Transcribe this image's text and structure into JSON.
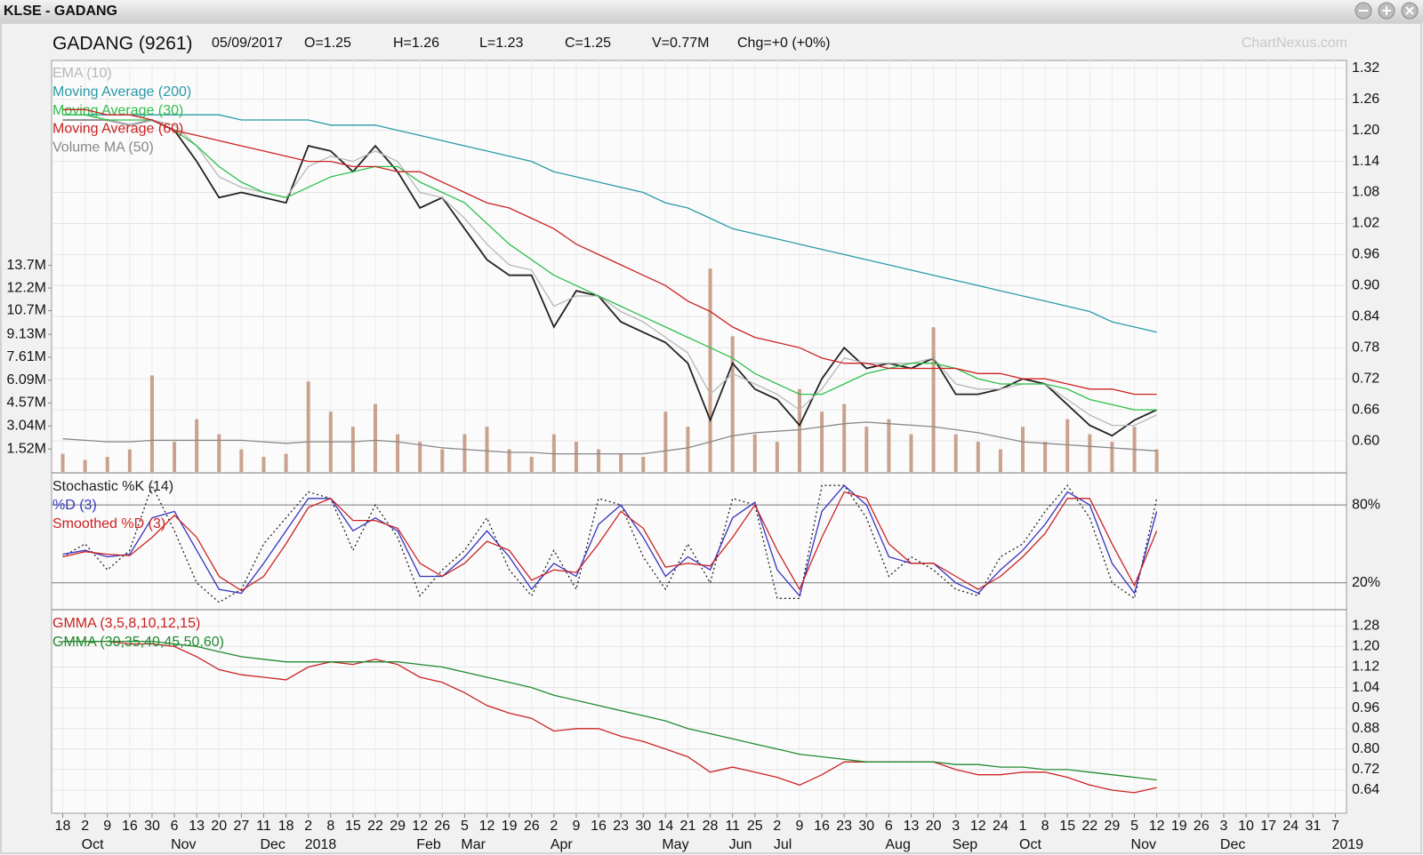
{
  "window_title": "KLSE - GADANG",
  "watermark": "ChartNexus.com",
  "chart_data": [
    {
      "type": "line",
      "title": "GADANG (9261)",
      "date": "05/09/2017",
      "stats": [
        "O=1.25",
        "H=1.26",
        "L=1.23",
        "C=1.25",
        "V=0.77M",
        "Chg=+0 (+0%)"
      ],
      "color": "#222222",
      "values": [
        1.22,
        1.22,
        1.22,
        1.21,
        1.22,
        1.2,
        1.14,
        1.07,
        1.08,
        1.07,
        1.06,
        1.17,
        1.16,
        1.12,
        1.17,
        1.12,
        1.05,
        1.07,
        1.01,
        0.95,
        0.92,
        0.92,
        0.82,
        0.89,
        0.88,
        0.83,
        0.81,
        0.79,
        0.75,
        0.64,
        0.75,
        0.7,
        0.68,
        0.63,
        0.72,
        0.78,
        0.74,
        0.75,
        0.74,
        0.76,
        0.69,
        0.69,
        0.7,
        0.72,
        0.71,
        0.67,
        0.63,
        0.61,
        0.64,
        0.66,
        null,
        null,
        null,
        null,
        null,
        null,
        null,
        null
      ],
      "volume_color": "#c9a28e",
      "volume_values": [
        1200000,
        800000,
        1000000,
        1500000,
        6400000,
        2000000,
        3500000,
        2500000,
        1500000,
        1000000,
        1200000,
        6000000,
        4000000,
        3000000,
        4500000,
        2500000,
        2000000,
        1500000,
        2500000,
        3000000,
        1500000,
        1000000,
        2500000,
        2000000,
        1500000,
        1200000,
        1000000,
        4000000,
        3000000,
        13500000,
        9000000,
        2500000,
        2000000,
        5500000,
        4000000,
        4500000,
        3000000,
        3500000,
        2500000,
        9600000,
        2500000,
        2000000,
        1500000,
        3000000,
        2000000,
        3500000,
        2500000,
        2000000,
        3000000,
        1500000,
        null,
        null,
        null,
        null,
        null,
        null,
        null,
        null
      ],
      "series": [
        {
          "name": "EMA (10)",
          "color": "#b8b8b8",
          "values": [
            1.22,
            1.22,
            1.22,
            1.21,
            1.22,
            1.21,
            1.17,
            1.11,
            1.09,
            1.08,
            1.07,
            1.13,
            1.15,
            1.14,
            1.16,
            1.14,
            1.08,
            1.07,
            1.03,
            0.98,
            0.94,
            0.93,
            0.86,
            0.88,
            0.88,
            0.85,
            0.83,
            0.8,
            0.77,
            0.69,
            0.73,
            0.71,
            0.69,
            0.66,
            0.7,
            0.76,
            0.75,
            0.75,
            0.75,
            0.76,
            0.71,
            0.7,
            0.7,
            0.71,
            0.71,
            0.68,
            0.65,
            0.63,
            0.63,
            0.65,
            null,
            null,
            null,
            null,
            null,
            null,
            null,
            null
          ]
        },
        {
          "name": "Moving Average (200)",
          "color": "#2a9aa6",
          "values": [
            1.23,
            1.23,
            1.23,
            1.23,
            1.23,
            1.23,
            1.23,
            1.23,
            1.22,
            1.22,
            1.22,
            1.22,
            1.21,
            1.21,
            1.21,
            1.2,
            1.19,
            1.18,
            1.17,
            1.16,
            1.15,
            1.14,
            1.12,
            1.11,
            1.1,
            1.09,
            1.08,
            1.06,
            1.05,
            1.03,
            1.01,
            1.0,
            0.99,
            0.98,
            0.97,
            0.96,
            0.95,
            0.94,
            0.93,
            0.92,
            0.91,
            0.9,
            0.89,
            0.88,
            0.87,
            0.86,
            0.85,
            0.83,
            0.82,
            0.81,
            null,
            null,
            null,
            null,
            null,
            null,
            null,
            null
          ]
        },
        {
          "name": "Moving Average (30)",
          "color": "#2fbf4a",
          "values": [
            1.23,
            1.23,
            1.22,
            1.22,
            1.22,
            1.2,
            1.17,
            1.13,
            1.1,
            1.08,
            1.07,
            1.09,
            1.11,
            1.12,
            1.13,
            1.13,
            1.1,
            1.08,
            1.06,
            1.02,
            0.98,
            0.95,
            0.92,
            0.9,
            0.88,
            0.86,
            0.84,
            0.82,
            0.8,
            0.78,
            0.76,
            0.73,
            0.71,
            0.69,
            0.69,
            0.71,
            0.73,
            0.74,
            0.75,
            0.75,
            0.74,
            0.72,
            0.71,
            0.71,
            0.71,
            0.7,
            0.68,
            0.67,
            0.66,
            0.66,
            null,
            null,
            null,
            null,
            null,
            null,
            null,
            null
          ]
        },
        {
          "name": "Moving Average (60)",
          "color": "#cc2222",
          "values": [
            1.24,
            1.24,
            1.23,
            1.23,
            1.22,
            1.2,
            1.19,
            1.18,
            1.17,
            1.16,
            1.15,
            1.14,
            1.14,
            1.13,
            1.13,
            1.12,
            1.12,
            1.1,
            1.08,
            1.06,
            1.05,
            1.03,
            1.01,
            0.98,
            0.96,
            0.94,
            0.92,
            0.9,
            0.87,
            0.85,
            0.82,
            0.8,
            0.79,
            0.78,
            0.76,
            0.75,
            0.75,
            0.74,
            0.74,
            0.74,
            0.74,
            0.73,
            0.73,
            0.72,
            0.72,
            0.71,
            0.7,
            0.7,
            0.69,
            0.69,
            null,
            null,
            null,
            null,
            null,
            null,
            null,
            null
          ]
        },
        {
          "name": "Volume MA (50)",
          "color": "#888888",
          "axis": "y2",
          "values": [
            2200000,
            2100000,
            2000000,
            2000000,
            2100000,
            2100000,
            2100000,
            2100000,
            2100000,
            2000000,
            1900000,
            2000000,
            2000000,
            2000000,
            2100000,
            2000000,
            1800000,
            1600000,
            1500000,
            1400000,
            1300000,
            1300000,
            1200000,
            1200000,
            1200000,
            1200000,
            1200000,
            1400000,
            1600000,
            2000000,
            2400000,
            2600000,
            2700000,
            2800000,
            3000000,
            3200000,
            3300000,
            3200000,
            3100000,
            3000000,
            2800000,
            2600000,
            2300000,
            2000000,
            1900000,
            1800000,
            1700000,
            1600000,
            1500000,
            1400000,
            null,
            null,
            null,
            null,
            null,
            null,
            null,
            null
          ]
        }
      ],
      "ylim": [
        0.54,
        1.335
      ],
      "yticks": [
        {
          "value": 0.6,
          "label": "0.60"
        },
        {
          "value": 0.66,
          "label": "0.66"
        },
        {
          "value": 0.72,
          "label": "0.72"
        },
        {
          "value": 0.78,
          "label": "0.78"
        },
        {
          "value": 0.84,
          "label": "0.84"
        },
        {
          "value": 0.9,
          "label": "0.90"
        },
        {
          "value": 0.96,
          "label": "0.96"
        },
        {
          "value": 1.02,
          "label": "1.02"
        },
        {
          "value": 1.08,
          "label": "1.08"
        },
        {
          "value": 1.14,
          "label": "1.14"
        },
        {
          "value": 1.2,
          "label": "1.20"
        },
        {
          "value": 1.26,
          "label": "1.26"
        },
        {
          "value": 1.32,
          "label": "1.32"
        }
      ],
      "y2lim": [
        0,
        27300000
      ],
      "y2ticks": [
        {
          "value": 1520000,
          "label": "1.52M"
        },
        {
          "value": 3040000,
          "label": "3.04M"
        },
        {
          "value": 4570000,
          "label": "4.57M"
        },
        {
          "value": 6090000,
          "label": "6.09M"
        },
        {
          "value": 7610000,
          "label": "7.61M"
        },
        {
          "value": 9130000,
          "label": "9.13M"
        },
        {
          "value": 10700000,
          "label": "10.7M"
        },
        {
          "value": 12200000,
          "label": "12.2M"
        },
        {
          "value": 13700000,
          "label": "13.7M"
        }
      ],
      "grid": true
    },
    {
      "type": "line",
      "series": [
        {
          "name": "Stochastic %K (14)",
          "color": "#222222",
          "dashed": true,
          "values": [
            40,
            50,
            30,
            45,
            95,
            60,
            20,
            5,
            15,
            50,
            70,
            90,
            85,
            45,
            80,
            55,
            10,
            30,
            45,
            70,
            30,
            10,
            45,
            15,
            85,
            80,
            40,
            15,
            50,
            20,
            85,
            80,
            8,
            8,
            95,
            95,
            70,
            25,
            40,
            30,
            15,
            10,
            40,
            50,
            75,
            95,
            70,
            20,
            8,
            85,
            null,
            null,
            null,
            null,
            null,
            null,
            null,
            null
          ]
        },
        {
          "name": "%D (3)",
          "color": "#3434c0",
          "values": [
            42,
            45,
            40,
            42,
            70,
            75,
            45,
            15,
            12,
            35,
            60,
            85,
            85,
            60,
            70,
            60,
            25,
            25,
            40,
            60,
            40,
            15,
            35,
            25,
            65,
            80,
            55,
            25,
            40,
            30,
            70,
            82,
            30,
            10,
            75,
            95,
            80,
            40,
            35,
            35,
            20,
            12,
            30,
            45,
            65,
            90,
            80,
            35,
            12,
            75,
            null,
            null,
            null,
            null,
            null,
            null,
            null,
            null
          ]
        },
        {
          "name": "Smoothed %D (3)",
          "color": "#cc2222",
          "values": [
            40,
            44,
            42,
            41,
            55,
            72,
            55,
            25,
            14,
            25,
            50,
            78,
            85,
            68,
            68,
            62,
            35,
            25,
            35,
            52,
            45,
            22,
            30,
            28,
            50,
            75,
            62,
            32,
            35,
            33,
            55,
            80,
            45,
            15,
            55,
            90,
            85,
            50,
            35,
            35,
            25,
            15,
            25,
            40,
            58,
            85,
            85,
            50,
            18,
            60,
            null,
            null,
            null,
            null,
            null,
            null,
            null,
            null
          ]
        }
      ],
      "ylim": [
        0,
        104
      ],
      "yticks": [
        {
          "value": 20,
          "label": "20%"
        },
        {
          "value": 80,
          "label": "80%"
        }
      ],
      "grid": true
    },
    {
      "type": "line",
      "categories": [
        "18",
        "2",
        "9",
        "16",
        "30",
        "6",
        "13",
        "20",
        "27",
        "11",
        "18",
        "2",
        "8",
        "15",
        "22",
        "29",
        "12",
        "26",
        "5",
        "12",
        "19",
        "26",
        "2",
        "9",
        "16",
        "23",
        "30",
        "14",
        "21",
        "28",
        "11",
        "25",
        "2",
        "9",
        "16",
        "23",
        "30",
        "6",
        "13",
        "20",
        "3",
        "12",
        "24",
        "1",
        "8",
        "15",
        "22",
        "29",
        "5",
        "12",
        "19",
        "26",
        "3",
        "10",
        "17",
        "24",
        "31",
        "7"
      ],
      "months": [
        null,
        "Oct",
        null,
        null,
        null,
        "Nov",
        null,
        null,
        null,
        "Dec",
        null,
        "2018",
        null,
        null,
        null,
        null,
        "Feb",
        null,
        "Mar",
        null,
        null,
        null,
        "Apr",
        null,
        null,
        null,
        null,
        "May",
        null,
        null,
        "Jun",
        null,
        "Jul",
        null,
        null,
        null,
        null,
        "Aug",
        null,
        null,
        "Sep",
        null,
        null,
        "Oct",
        null,
        null,
        null,
        null,
        "Nov",
        null,
        null,
        null,
        "Dec",
        null,
        null,
        null,
        null,
        "2019"
      ],
      "series": [
        {
          "name": "GMMA (3,5,8,10,12,15)",
          "color": "#cc2222",
          "values": [
            1.22,
            1.22,
            1.22,
            1.21,
            1.21,
            1.2,
            1.16,
            1.11,
            1.09,
            1.08,
            1.07,
            1.12,
            1.14,
            1.13,
            1.15,
            1.13,
            1.08,
            1.06,
            1.02,
            0.97,
            0.94,
            0.92,
            0.87,
            0.88,
            0.88,
            0.85,
            0.83,
            0.8,
            0.77,
            0.71,
            0.73,
            0.71,
            0.69,
            0.66,
            0.7,
            0.75,
            0.75,
            0.75,
            0.75,
            0.75,
            0.72,
            0.7,
            0.7,
            0.71,
            0.71,
            0.69,
            0.66,
            0.64,
            0.63,
            0.65,
            null,
            null,
            null,
            null,
            null,
            null,
            null,
            null
          ]
        },
        {
          "name": "GMMA (30,35,40,45,50,60)",
          "color": "#208a30",
          "values": [
            1.22,
            1.22,
            1.22,
            1.22,
            1.22,
            1.21,
            1.2,
            1.18,
            1.16,
            1.15,
            1.14,
            1.14,
            1.14,
            1.14,
            1.14,
            1.14,
            1.13,
            1.12,
            1.1,
            1.08,
            1.06,
            1.04,
            1.01,
            0.99,
            0.97,
            0.95,
            0.93,
            0.91,
            0.88,
            0.86,
            0.84,
            0.82,
            0.8,
            0.78,
            0.77,
            0.76,
            0.75,
            0.75,
            0.75,
            0.75,
            0.74,
            0.74,
            0.73,
            0.73,
            0.72,
            0.72,
            0.71,
            0.7,
            0.69,
            0.68,
            null,
            null,
            null,
            null,
            null,
            null,
            null,
            null
          ]
        }
      ],
      "ylim": [
        0.55,
        1.34
      ],
      "yticks": [
        {
          "value": 0.64,
          "label": "0.64"
        },
        {
          "value": 0.72,
          "label": "0.72"
        },
        {
          "value": 0.8,
          "label": "0.80"
        },
        {
          "value": 0.88,
          "label": "0.88"
        },
        {
          "value": 0.96,
          "label": "0.96"
        },
        {
          "value": 1.04,
          "label": "1.04"
        },
        {
          "value": 1.12,
          "label": "1.12"
        },
        {
          "value": 1.2,
          "label": "1.20"
        },
        {
          "value": 1.28,
          "label": "1.28"
        }
      ],
      "grid": true
    }
  ]
}
